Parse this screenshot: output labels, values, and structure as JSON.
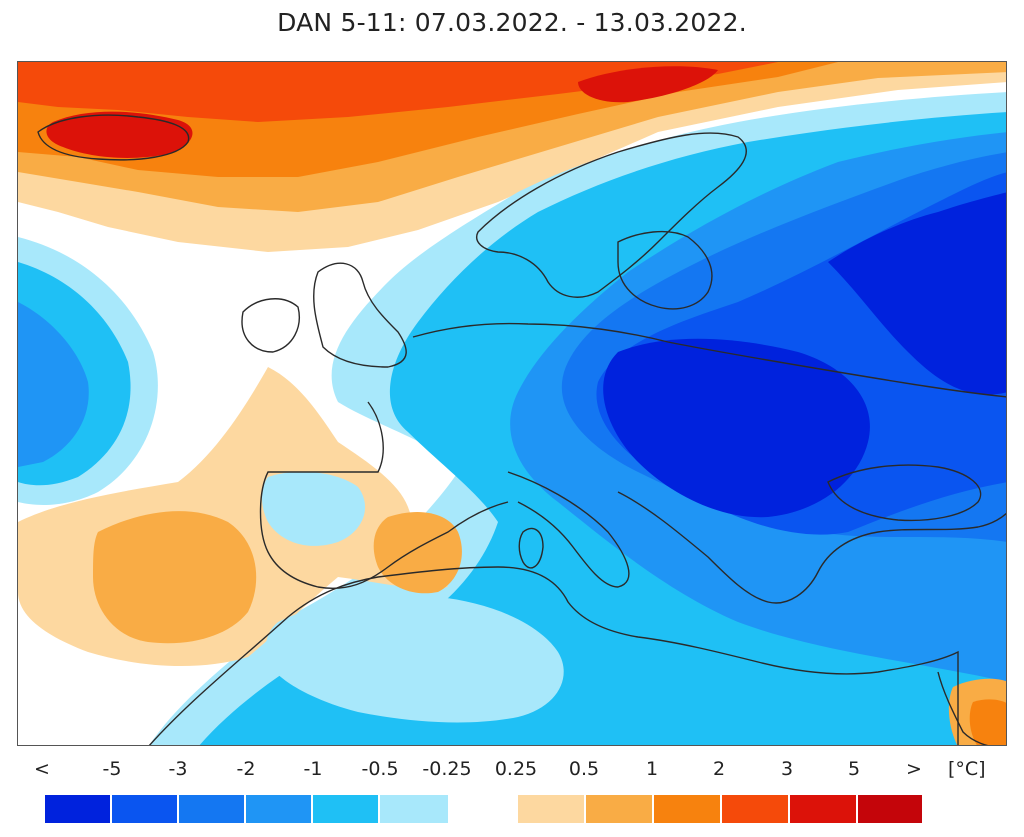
{
  "title": "DAN 5-11: 07.03.2022. - 13.03.2022.",
  "legend": {
    "labels": [
      "<",
      "-5",
      "-3",
      "-2",
      "-1",
      "-0.5",
      "-0.25",
      "0.25",
      "0.5",
      "1",
      "2",
      "3",
      "5",
      ">"
    ],
    "unit": "[°C]",
    "cold_colors": [
      "#0022dd",
      "#0a55f0",
      "#1477f2",
      "#1f95f5",
      "#1fc0f5",
      "#a8e8fb"
    ],
    "warm_colors": [
      "#fdd8a0",
      "#f9ac45",
      "#f7820e",
      "#f54a0a",
      "#dc1209",
      "#c4050a"
    ]
  },
  "map": {
    "ocean_color": "#ffffff",
    "coast_color": "#2a2a2a",
    "region": "Europe, North Atlantic, North Africa"
  }
}
